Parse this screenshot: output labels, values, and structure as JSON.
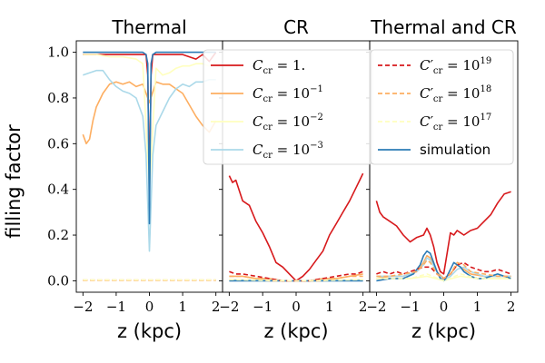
{
  "chart_data": [
    {
      "type": "line",
      "title": "Thermal",
      "xlabel": "z (kpc)",
      "ylabel": "filling factor",
      "xlim": [
        -2.2,
        2.2
      ],
      "ylim": [
        -0.05,
        1.05
      ],
      "xticks": [
        -2,
        -1,
        0,
        1,
        2
      ],
      "xtick_labels": [
        "−2",
        "−1",
        "0",
        "1",
        "2"
      ],
      "yticks": [
        0.0,
        0.2,
        0.4,
        0.6,
        0.8,
        1.0
      ],
      "ytick_labels": [
        "0.0",
        "0.2",
        "0.4",
        "0.6",
        "0.8",
        "1.0"
      ],
      "series": [
        {
          "name": "C_cr = 1.",
          "color": "#d7191c",
          "dash": "solid",
          "x": [
            -2,
            -1.6,
            -1.2,
            -0.8,
            -0.4,
            -0.2,
            -0.1,
            -0.05,
            0,
            0.05,
            0.1,
            0.2,
            0.4,
            0.8,
            1.0,
            1.2,
            1.4,
            1.6,
            1.8,
            2.0
          ],
          "y": [
            0.99,
            0.99,
            0.99,
            0.99,
            0.99,
            0.99,
            0.99,
            0.9,
            0.4,
            0.9,
            0.99,
            0.99,
            0.99,
            0.99,
            0.99,
            0.98,
            0.97,
            0.99,
            0.96,
            1.0
          ]
        },
        {
          "name": "C_cr = 10^-1",
          "color": "#fdae61",
          "dash": "solid",
          "x": [
            -2,
            -1.9,
            -1.8,
            -1.7,
            -1.6,
            -1.4,
            -1.2,
            -1.0,
            -0.8,
            -0.6,
            -0.4,
            -0.2,
            0,
            0.2,
            0.4,
            0.6,
            0.8,
            1.0,
            1.2,
            1.4,
            1.6,
            1.8,
            2.0
          ],
          "y": [
            0.64,
            0.6,
            0.62,
            0.7,
            0.76,
            0.82,
            0.86,
            0.87,
            0.86,
            0.87,
            0.85,
            0.86,
            0.78,
            0.87,
            0.86,
            0.86,
            0.84,
            0.82,
            0.77,
            0.72,
            0.68,
            0.65,
            0.7
          ]
        },
        {
          "name": "C_cr = 10^-2",
          "color": "#ffffbf",
          "dash": "solid",
          "x": [
            -2,
            -1.6,
            -1.2,
            -0.8,
            -0.4,
            -0.2,
            0,
            0.2,
            0.4,
            0.6,
            0.8,
            1.0,
            1.2,
            1.4,
            1.6,
            1.8,
            2.0
          ],
          "y": [
            0.99,
            0.99,
            0.98,
            0.98,
            0.97,
            0.95,
            0.4,
            0.93,
            0.9,
            0.91,
            0.93,
            0.94,
            0.94,
            0.95,
            0.95,
            0.94,
            0.96
          ]
        },
        {
          "name": "C_cr = 10^-3",
          "color": "#abd9e9",
          "dash": "solid",
          "x": [
            -2,
            -1.8,
            -1.6,
            -1.4,
            -1.2,
            -1.0,
            -0.8,
            -0.6,
            -0.4,
            -0.2,
            -0.1,
            0,
            0.1,
            0.2,
            0.4,
            0.6,
            0.8,
            1.0,
            1.2,
            1.4,
            1.6,
            1.8,
            2.0
          ],
          "y": [
            0.9,
            0.91,
            0.92,
            0.92,
            0.88,
            0.85,
            0.83,
            0.82,
            0.8,
            0.72,
            0.55,
            0.13,
            0.55,
            0.68,
            0.74,
            0.8,
            0.84,
            0.86,
            0.85,
            0.87,
            0.87,
            0.88,
            0.88
          ]
        },
        {
          "name": "simulation",
          "color": "#2c7bb6",
          "dash": "solid",
          "x": [
            -2,
            -1.6,
            -1.2,
            -0.8,
            -0.4,
            -0.2,
            -0.1,
            -0.05,
            0,
            0.05,
            0.1,
            0.2,
            0.4,
            0.8,
            1.2,
            1.6,
            2.0
          ],
          "y": [
            1.0,
            1.0,
            1.0,
            1.0,
            1.0,
            1.0,
            0.99,
            0.95,
            0.25,
            0.95,
            0.99,
            1.0,
            1.0,
            1.0,
            1.0,
            1.0,
            1.0
          ]
        },
        {
          "name": "C'_cr = 10^19",
          "color": "#d7191c",
          "dash": "dashed",
          "x": [
            -2,
            -1,
            0,
            1,
            2
          ],
          "y": [
            0.003,
            0.003,
            0.003,
            0.003,
            0.003
          ]
        },
        {
          "name": "C'_cr = 10^18",
          "color": "#fdae61",
          "dash": "dashed",
          "x": [
            -2,
            -1,
            0,
            1,
            2
          ],
          "y": [
            0.002,
            0.002,
            0.002,
            0.002,
            0.002
          ]
        },
        {
          "name": "C'_cr = 10^17",
          "color": "#ffffbf",
          "dash": "dashed",
          "x": [
            -2,
            -1,
            0,
            1,
            2
          ],
          "y": [
            0.004,
            0.004,
            0.004,
            0.004,
            0.004
          ]
        }
      ]
    },
    {
      "type": "line",
      "title": "CR",
      "xlabel": "z (kpc)",
      "xlim": [
        -2.2,
        2.2
      ],
      "ylim": [
        -0.05,
        1.05
      ],
      "xticks": [
        -2,
        -1,
        0,
        1,
        2
      ],
      "xtick_labels": [
        "−2",
        "−1",
        "0",
        "1",
        "2"
      ],
      "series": [
        {
          "name": "C_cr = 1.",
          "color": "#d7191c",
          "dash": "solid",
          "x": [
            -2,
            -1.9,
            -1.8,
            -1.6,
            -1.4,
            -1.2,
            -1.0,
            -0.8,
            -0.6,
            -0.4,
            -0.2,
            0,
            0.2,
            0.4,
            0.6,
            0.8,
            1.0,
            1.2,
            1.4,
            1.6,
            1.8,
            1.9,
            2.0
          ],
          "y": [
            0.46,
            0.43,
            0.44,
            0.35,
            0.33,
            0.26,
            0.21,
            0.15,
            0.08,
            0.06,
            0.03,
            0.0,
            0.02,
            0.05,
            0.09,
            0.13,
            0.2,
            0.25,
            0.3,
            0.35,
            0.41,
            0.44,
            0.47
          ]
        },
        {
          "name": "C_cr = 10^-1",
          "color": "#fdae61",
          "dash": "solid",
          "x": [
            -2,
            -1.6,
            -1.2,
            -0.8,
            -0.4,
            0,
            0.4,
            0.8,
            1.2,
            1.6,
            2.0
          ],
          "y": [
            0.02,
            0.02,
            0.01,
            0.01,
            0.0,
            0.0,
            0.0,
            0.01,
            0.01,
            0.02,
            0.03
          ]
        },
        {
          "name": "C_cr = 10^-2",
          "color": "#ffffbf",
          "dash": "solid",
          "x": [
            -2,
            -1,
            0,
            1,
            2
          ],
          "y": [
            0.005,
            0.003,
            0.0,
            0.003,
            0.005
          ]
        },
        {
          "name": "C_cr = 10^-3",
          "color": "#abd9e9",
          "dash": "solid",
          "x": [
            -2,
            -1,
            0,
            1,
            2
          ],
          "y": [
            0.003,
            0.002,
            0.0,
            0.002,
            0.003
          ]
        },
        {
          "name": "simulation",
          "color": "#2c7bb6",
          "dash": "solid",
          "x": [
            -2,
            -1,
            0,
            1,
            2
          ],
          "y": [
            0.0,
            0.0,
            0.0,
            0.0,
            0.0
          ]
        },
        {
          "name": "C'_cr = 10^19",
          "color": "#d7191c",
          "dash": "dashed",
          "x": [
            -2,
            -1.8,
            -1.6,
            -1.2,
            -0.8,
            -0.4,
            0,
            0.4,
            0.8,
            1.2,
            1.6,
            1.8,
            2.0
          ],
          "y": [
            0.04,
            0.03,
            0.03,
            0.02,
            0.01,
            0.0,
            0.0,
            0.0,
            0.01,
            0.02,
            0.03,
            0.03,
            0.04
          ]
        },
        {
          "name": "C'_cr = 10^18",
          "color": "#fdae61",
          "dash": "dashed",
          "x": [
            -2,
            -1.6,
            -1.2,
            -0.8,
            0,
            0.8,
            1.2,
            1.6,
            2.0
          ],
          "y": [
            0.02,
            0.02,
            0.01,
            0.0,
            0.0,
            0.0,
            0.01,
            0.02,
            0.02
          ]
        },
        {
          "name": "C'_cr = 10^17",
          "color": "#ffffbf",
          "dash": "dashed",
          "x": [
            -2,
            -1,
            0,
            1,
            2
          ],
          "y": [
            0.005,
            0.002,
            0.0,
            0.002,
            0.005
          ]
        }
      ]
    },
    {
      "type": "line",
      "title": "Thermal and CR",
      "xlabel": "z (kpc)",
      "xlim": [
        -2.2,
        2.2
      ],
      "ylim": [
        -0.05,
        1.05
      ],
      "xticks": [
        -2,
        -1,
        0,
        1,
        2
      ],
      "xtick_labels": [
        "−2",
        "−1",
        "0",
        "1",
        "2"
      ],
      "series": [
        {
          "name": "C_cr = 1.",
          "color": "#d7191c",
          "dash": "solid",
          "x": [
            -2,
            -1.9,
            -1.8,
            -1.6,
            -1.4,
            -1.2,
            -1.0,
            -0.8,
            -0.6,
            -0.5,
            -0.4,
            -0.3,
            -0.2,
            -0.1,
            0,
            0.1,
            0.2,
            0.3,
            0.4,
            0.6,
            0.8,
            1.0,
            1.2,
            1.4,
            1.6,
            1.8,
            2.0
          ],
          "y": [
            0.35,
            0.3,
            0.28,
            0.26,
            0.24,
            0.2,
            0.17,
            0.19,
            0.2,
            0.23,
            0.2,
            0.15,
            0.08,
            0.04,
            0.03,
            0.12,
            0.21,
            0.2,
            0.22,
            0.2,
            0.22,
            0.23,
            0.26,
            0.29,
            0.34,
            0.38,
            0.39
          ]
        },
        {
          "name": "C_cr = 10^-1",
          "color": "#fdae61",
          "dash": "solid",
          "x": [
            -2,
            -1.6,
            -1.2,
            -0.8,
            -0.6,
            -0.5,
            -0.4,
            -0.2,
            0,
            0.2,
            0.4,
            0.6,
            0.8,
            1.2,
            1.6,
            2.0
          ],
          "y": [
            0.01,
            0.02,
            0.02,
            0.04,
            0.08,
            0.11,
            0.1,
            0.04,
            0.01,
            0.03,
            0.07,
            0.05,
            0.03,
            0.02,
            0.02,
            0.02
          ]
        },
        {
          "name": "C_cr = 10^-2",
          "color": "#ffffbf",
          "dash": "solid",
          "x": [
            -2,
            -1,
            -0.5,
            0,
            0.5,
            1,
            2
          ],
          "y": [
            0.01,
            0.01,
            0.02,
            0.0,
            0.02,
            0.01,
            0.01
          ]
        },
        {
          "name": "C_cr = 10^-3",
          "color": "#abd9e9",
          "dash": "solid",
          "x": [
            -2,
            -1.2,
            -0.8,
            -0.6,
            -0.5,
            -0.4,
            -0.2,
            0,
            0.2,
            0.4,
            0.6,
            0.8,
            1.2,
            1.6,
            2.0
          ],
          "y": [
            0.02,
            0.02,
            0.04,
            0.07,
            0.1,
            0.09,
            0.04,
            0.0,
            0.02,
            0.05,
            0.06,
            0.04,
            0.02,
            0.02,
            0.02
          ]
        },
        {
          "name": "simulation",
          "color": "#2c7bb6",
          "dash": "solid",
          "x": [
            -2,
            -1.6,
            -1.2,
            -0.9,
            -0.7,
            -0.6,
            -0.5,
            -0.4,
            -0.3,
            -0.2,
            -0.1,
            0,
            0.1,
            0.2,
            0.3,
            0.4,
            0.5,
            0.6,
            0.8,
            1.0,
            1.2,
            1.4,
            1.6,
            1.8,
            2.0
          ],
          "y": [
            0.0,
            0.01,
            0.01,
            0.03,
            0.07,
            0.11,
            0.13,
            0.12,
            0.08,
            0.04,
            0.01,
            0.0,
            0.02,
            0.05,
            0.08,
            0.07,
            0.06,
            0.04,
            0.02,
            0.01,
            0.01,
            0.02,
            0.03,
            0.02,
            0.01
          ]
        },
        {
          "name": "C'_cr = 10^19",
          "color": "#d7191c",
          "dash": "dashed",
          "x": [
            -2,
            -1.8,
            -1.6,
            -1.4,
            -1.2,
            -1.0,
            -0.8,
            -0.6,
            -0.4,
            -0.2,
            0,
            0.2,
            0.4,
            0.6,
            0.8,
            1.0,
            1.2,
            1.4,
            1.6,
            1.8,
            2.0
          ],
          "y": [
            0.03,
            0.04,
            0.03,
            0.04,
            0.03,
            0.04,
            0.05,
            0.06,
            0.06,
            0.03,
            0.01,
            0.03,
            0.07,
            0.08,
            0.06,
            0.05,
            0.04,
            0.04,
            0.05,
            0.04,
            0.03
          ]
        },
        {
          "name": "C'_cr = 10^18",
          "color": "#fdae61",
          "dash": "dashed",
          "x": [
            -2,
            -1.6,
            -1.2,
            -0.8,
            -0.6,
            -0.5,
            -0.4,
            -0.2,
            0,
            0.2,
            0.4,
            0.6,
            0.8,
            1.2,
            1.6,
            2.0
          ],
          "y": [
            0.02,
            0.02,
            0.03,
            0.04,
            0.07,
            0.09,
            0.08,
            0.03,
            0.01,
            0.03,
            0.08,
            0.07,
            0.04,
            0.03,
            0.02,
            0.02
          ]
        },
        {
          "name": "C'_cr = 10^17",
          "color": "#ffffbf",
          "dash": "dashed",
          "x": [
            -2,
            -1,
            -0.5,
            0,
            0.5,
            1,
            2
          ],
          "y": [
            0.01,
            0.01,
            0.03,
            0.0,
            0.03,
            0.01,
            0.01
          ]
        }
      ]
    }
  ],
  "legend_left": [
    {
      "math": "C",
      "sub": "cr",
      "eq": " = 1.",
      "sup": "",
      "color": "#d7191c",
      "dash": "solid"
    },
    {
      "math": "C",
      "sub": "cr",
      "eq": " = 10",
      "sup": "−1",
      "color": "#fdae61",
      "dash": "solid"
    },
    {
      "math": "C",
      "sub": "cr",
      "eq": " = 10",
      "sup": "−2",
      "color": "#ffffbf",
      "dash": "solid"
    },
    {
      "math": "C",
      "sub": "cr",
      "eq": " = 10",
      "sup": "−3",
      "color": "#abd9e9",
      "dash": "solid"
    }
  ],
  "legend_right": [
    {
      "math": "C′",
      "sub": "cr",
      "eq": " = 10",
      "sup": "19",
      "color": "#d7191c",
      "dash": "dashed"
    },
    {
      "math": "C′",
      "sub": "cr",
      "eq": " = 10",
      "sup": "18",
      "color": "#fdae61",
      "dash": "dashed"
    },
    {
      "math": "C′",
      "sub": "cr",
      "eq": " = 10",
      "sup": "17",
      "color": "#ffffbf",
      "dash": "dashed"
    },
    {
      "plain": "simulation",
      "color": "#2c7bb6",
      "dash": "solid"
    }
  ]
}
